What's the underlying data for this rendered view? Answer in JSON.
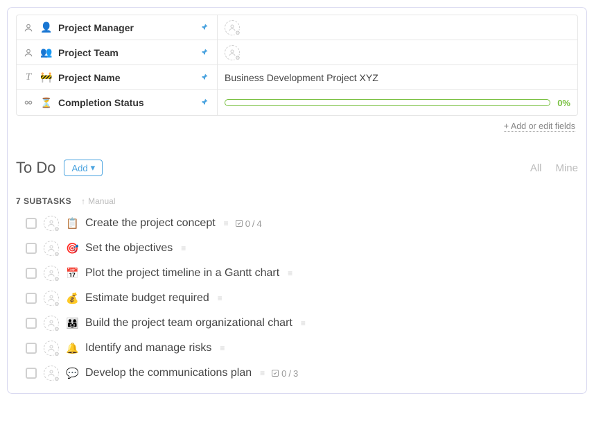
{
  "colors": {
    "accent": "#4aa3df",
    "progress": "#7ac142",
    "panel_border": "#d6d6ef",
    "cell_border": "#e6e6e6",
    "text": "#333333",
    "muted": "#bbbbbb"
  },
  "fields": [
    {
      "type_icon": "person",
      "emoji": "👤",
      "label": "Project Manager",
      "pinned": true,
      "value_type": "assignee",
      "value": ""
    },
    {
      "type_icon": "person",
      "emoji": "👥",
      "label": "Project Team",
      "pinned": true,
      "value_type": "assignee",
      "value": ""
    },
    {
      "type_icon": "text",
      "emoji": "🚧",
      "label": "Project Name",
      "pinned": true,
      "value_type": "text",
      "value": "Business Development Project XYZ"
    },
    {
      "type_icon": "progress",
      "emoji": "⏳",
      "label": "Completion Status",
      "pinned": true,
      "value_type": "progress",
      "progress_pct": 0,
      "progress_label": "0%"
    }
  ],
  "add_fields_label": "+ Add or edit fields",
  "section": {
    "title": "To Do",
    "add_button": "Add",
    "tab_all": "All",
    "tab_mine": "Mine"
  },
  "subtasks_meta": {
    "count_label": "7 Subtasks",
    "sort_label": "Manual"
  },
  "tasks": [
    {
      "emoji": "📋",
      "title": "Create the project concept",
      "has_desc": true,
      "sub_done": 0,
      "sub_total": 4
    },
    {
      "emoji": "🎯",
      "title": "Set the objectives",
      "has_desc": true
    },
    {
      "emoji": "📅",
      "title": "Plot the project timeline in a Gantt chart",
      "has_desc": true
    },
    {
      "emoji": "💰",
      "title": "Estimate budget required",
      "has_desc": true
    },
    {
      "emoji": "👨‍👩‍👧",
      "title": "Build the project team organizational chart",
      "has_desc": true
    },
    {
      "emoji": "🔔",
      "title": "Identify and manage risks",
      "has_desc": true
    },
    {
      "emoji": "💬",
      "title": "Develop the communications plan",
      "has_desc": true,
      "sub_done": 0,
      "sub_total": 3
    }
  ]
}
